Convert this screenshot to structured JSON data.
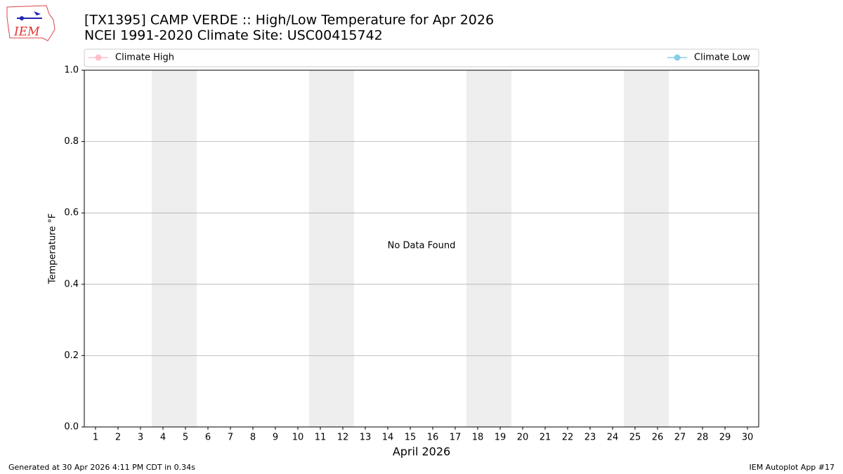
{
  "logo": {
    "text": "IEM"
  },
  "chart_data": {
    "type": "line",
    "title": "[TX1395] CAMP VERDE :: High/Low Temperature for Apr 2026",
    "subtitle": "NCEI 1991-2020 Climate Site: USC00415742",
    "xlabel": "April 2026",
    "ylabel": "Temperature °F",
    "annotation": "No Data Found",
    "x": [
      1,
      2,
      3,
      4,
      5,
      6,
      7,
      8,
      9,
      10,
      11,
      12,
      13,
      14,
      15,
      16,
      17,
      18,
      19,
      20,
      21,
      22,
      23,
      24,
      25,
      26,
      27,
      28,
      29,
      30
    ],
    "series": [
      {
        "name": "Climate High",
        "color": "#ffc0cb",
        "values": [
          null,
          null,
          null,
          null,
          null,
          null,
          null,
          null,
          null,
          null,
          null,
          null,
          null,
          null,
          null,
          null,
          null,
          null,
          null,
          null,
          null,
          null,
          null,
          null,
          null,
          null,
          null,
          null,
          null,
          null
        ]
      },
      {
        "name": "Climate Low",
        "color": "#87ceeb",
        "values": [
          null,
          null,
          null,
          null,
          null,
          null,
          null,
          null,
          null,
          null,
          null,
          null,
          null,
          null,
          null,
          null,
          null,
          null,
          null,
          null,
          null,
          null,
          null,
          null,
          null,
          null,
          null,
          null,
          null,
          null
        ]
      }
    ],
    "shaded_spans": [
      [
        3.5,
        5.5
      ],
      [
        10.5,
        12.5
      ],
      [
        17.5,
        19.5
      ],
      [
        24.5,
        26.5
      ]
    ],
    "shade_color": "#eeeeee",
    "xlim": [
      0.5,
      30.5
    ],
    "xticks": [
      1,
      2,
      3,
      4,
      5,
      6,
      7,
      8,
      9,
      10,
      11,
      12,
      13,
      14,
      15,
      16,
      17,
      18,
      19,
      20,
      21,
      22,
      23,
      24,
      25,
      26,
      27,
      28,
      29,
      30
    ],
    "ylim": [
      0,
      1
    ],
    "yticks": [
      {
        "value": 0,
        "label": "0.0"
      },
      {
        "value": 0.2,
        "label": "0.2"
      },
      {
        "value": 0.4,
        "label": "0.4"
      },
      {
        "value": 0.6,
        "label": "0.6"
      },
      {
        "value": 0.8,
        "label": "0.8"
      },
      {
        "value": 1,
        "label": "1.0"
      }
    ],
    "grid": "y",
    "legend": "top"
  },
  "footer": {
    "left": "Generated at 30 Apr 2026 4:11 PM CDT in 0.34s",
    "right": "IEM Autoplot App #17"
  }
}
